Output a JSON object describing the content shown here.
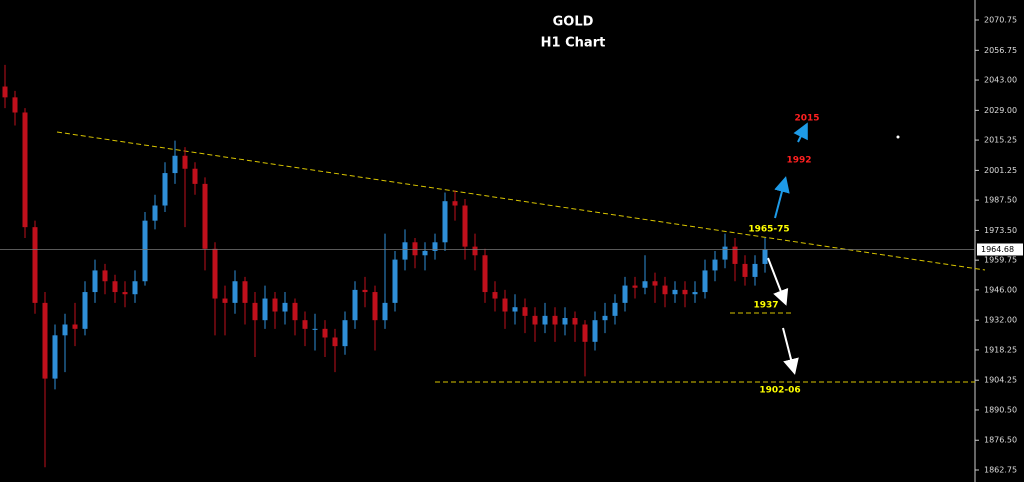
{
  "chart_data": {
    "type": "candlestick",
    "title": "GOLD",
    "subtitle": "H1 Chart",
    "open": [
      2040,
      2035,
      2028,
      1975,
      1940,
      1905,
      1925,
      1930,
      1928,
      1945,
      1955,
      1950,
      1945,
      1944,
      1950,
      1978,
      1985,
      2000,
      2008,
      2002,
      1995,
      1965,
      1942,
      1940,
      1950,
      1940,
      1932,
      1942,
      1936,
      1940,
      1932,
      1928,
      1928,
      1924,
      1920,
      1932,
      1946,
      1945,
      1932,
      1940,
      1960,
      1968,
      1962,
      1964,
      1968,
      1987,
      1985,
      1966,
      1962,
      1945,
      1942,
      1936,
      1938,
      1934,
      1930,
      1934,
      1930,
      1933,
      1930,
      1922,
      1932,
      1934,
      1940,
      1948,
      1947,
      1950,
      1948,
      1944,
      1946,
      1944,
      1945,
      1955,
      1960,
      1966,
      1958,
      1952,
      1958
    ],
    "high": [
      2050,
      2038,
      2030,
      1978,
      1945,
      1930,
      1935,
      1940,
      1950,
      1960,
      1958,
      1953,
      1950,
      1955,
      1982,
      1990,
      2005,
      2015,
      2012,
      2005,
      1998,
      1968,
      1948,
      1955,
      1952,
      1945,
      1948,
      1945,
      1945,
      1942,
      1936,
      1935,
      1932,
      1928,
      1936,
      1950,
      1952,
      1948,
      1972,
      1964,
      1974,
      1970,
      1968,
      1972,
      1991,
      1992,
      1988,
      1972,
      1965,
      1950,
      1946,
      1944,
      1942,
      1938,
      1940,
      1938,
      1938,
      1936,
      1932,
      1936,
      1940,
      1944,
      1952,
      1952,
      1962,
      1954,
      1952,
      1950,
      1950,
      1950,
      1960,
      1964,
      1972,
      1970,
      1962,
      1962,
      1970
    ],
    "low": [
      2030,
      2022,
      1970,
      1935,
      1864,
      1900,
      1908,
      1920,
      1925,
      1940,
      1944,
      1940,
      1938,
      1940,
      1948,
      1974,
      1982,
      1995,
      1975,
      1990,
      1955,
      1925,
      1925,
      1935,
      1930,
      1915,
      1928,
      1928,
      1930,
      1925,
      1920,
      1918,
      1915,
      1908,
      1916,
      1928,
      1938,
      1918,
      1928,
      1936,
      1955,
      1956,
      1955,
      1960,
      1964,
      1978,
      1960,
      1955,
      1940,
      1936,
      1928,
      1930,
      1926,
      1922,
      1926,
      1922,
      1925,
      1922,
      1906,
      1918,
      1926,
      1930,
      1936,
      1942,
      1944,
      1940,
      1938,
      1940,
      1938,
      1940,
      1942,
      1950,
      1956,
      1950,
      1948,
      1948,
      1954
    ],
    "close": [
      2035,
      2028,
      1975,
      1940,
      1905,
      1925,
      1930,
      1928,
      1945,
      1955,
      1950,
      1945,
      1944,
      1950,
      1978,
      1985,
      2000,
      2008,
      2002,
      1995,
      1965,
      1942,
      1940,
      1950,
      1940,
      1932,
      1942,
      1936,
      1940,
      1932,
      1928,
      1928,
      1924,
      1920,
      1932,
      1946,
      1945,
      1932,
      1940,
      1960,
      1968,
      1962,
      1964,
      1968,
      1987,
      1985,
      1966,
      1962,
      1945,
      1942,
      1936,
      1938,
      1934,
      1930,
      1934,
      1930,
      1933,
      1930,
      1922,
      1932,
      1934,
      1940,
      1948,
      1947,
      1950,
      1948,
      1944,
      1946,
      1944,
      1945,
      1955,
      1960,
      1966,
      1958,
      1952,
      1958,
      1964.68
    ],
    "up_color": "#2f8fd8",
    "down_color": "#c0101c",
    "ylim": [
      1857.2,
      2080.0
    ],
    "yticks": [
      2070.75,
      2056.75,
      {
        "value": 2043,
        "label": "2043.00"
      },
      {
        "value": 2029,
        "label": "2029.00"
      },
      2015.25,
      2001.25,
      {
        "value": 1987.5,
        "label": "1987.50"
      },
      {
        "value": 1973.5,
        "label": "1973.50"
      },
      1959.75,
      {
        "value": 1946,
        "label": "1946.00"
      },
      {
        "value": 1932,
        "label": "1932.00"
      },
      1918.25,
      1904.25,
      {
        "value": 1890.5,
        "label": "1890.50"
      },
      {
        "value": 1876.5,
        "label": "1876.50"
      },
      1862.75
    ],
    "last_price": 1964.68,
    "annotations": [
      {
        "text": "2015",
        "color": "#ff2020"
      },
      {
        "text": "1992",
        "color": "#ff2020"
      },
      {
        "text": "1965-75",
        "color": "#ffff00"
      },
      {
        "text": "1937",
        "color": "#ffff00"
      },
      {
        "text": "1902-06",
        "color": "#ffff00"
      }
    ]
  }
}
